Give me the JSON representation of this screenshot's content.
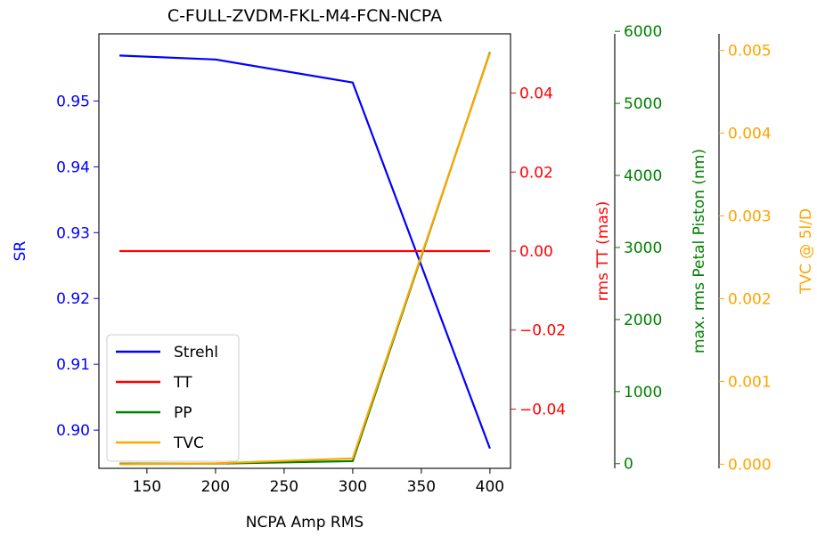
{
  "chart_data": {
    "type": "line",
    "title": "C-FULL-ZVDM-FKL-M4-FCN-NCPA",
    "xlabel": "NCPA Amp RMS",
    "x": [
      130,
      200,
      300,
      400
    ],
    "xlim": [
      115,
      415
    ],
    "xticks": [
      150,
      200,
      250,
      300,
      350,
      400
    ],
    "axes": [
      {
        "id": "sr",
        "label": "SR",
        "color": "#0000ff",
        "ylim": [
          0.8942,
          0.9602
        ],
        "ticks": [
          0.9,
          0.91,
          0.92,
          0.93,
          0.94,
          0.95
        ],
        "tick_labels": [
          "0.90",
          "0.91",
          "0.92",
          "0.93",
          "0.94",
          "0.95"
        ]
      },
      {
        "id": "tt",
        "label": "rms TT (mas)",
        "color": "#ff0000",
        "ylim": [
          -0.055,
          0.055
        ],
        "ticks": [
          -0.04,
          -0.02,
          0.0,
          0.02,
          0.04
        ],
        "tick_labels": [
          "−0.04",
          "−0.02",
          "0.00",
          "0.02",
          "0.04"
        ]
      },
      {
        "id": "pp",
        "label": "max. rms Petal Piston (nm)",
        "color": "#008000",
        "ylim": [
          -65,
          5965
        ],
        "ticks": [
          0,
          1000,
          2000,
          3000,
          4000,
          5000,
          6000
        ],
        "tick_labels": [
          "0",
          "1000",
          "2000",
          "3000",
          "4000",
          "5000",
          "6000"
        ]
      },
      {
        "id": "tvc",
        "label": "TVC @ 5l/D",
        "color": "#ffa500",
        "ylim": [
          -5e-05,
          0.0052
        ],
        "ticks": [
          0.0,
          0.001,
          0.002,
          0.003,
          0.004,
          0.005
        ],
        "tick_labels": [
          "0.000",
          "0.001",
          "0.002",
          "0.003",
          "0.004",
          "0.005"
        ]
      }
    ],
    "series": [
      {
        "name": "Strehl",
        "axis": "sr",
        "color": "#0000ff",
        "values": [
          0.9569,
          0.9563,
          0.9528,
          0.8972
        ]
      },
      {
        "name": "TT",
        "axis": "tt",
        "color": "#ff0000",
        "values": [
          0.0,
          0.0,
          0.0,
          0.0
        ]
      },
      {
        "name": "PP",
        "axis": "pp",
        "color": "#008000",
        "values": [
          0,
          0,
          35,
          5710
        ]
      },
      {
        "name": "TVC",
        "axis": "tvc",
        "color": "#ffa500",
        "values": [
          0.0,
          1e-05,
          7e-05,
          0.00497
        ]
      }
    ],
    "legend": {
      "position": "lower-left",
      "entries": [
        "Strehl",
        "TT",
        "PP",
        "TVC"
      ]
    },
    "grid": false
  }
}
